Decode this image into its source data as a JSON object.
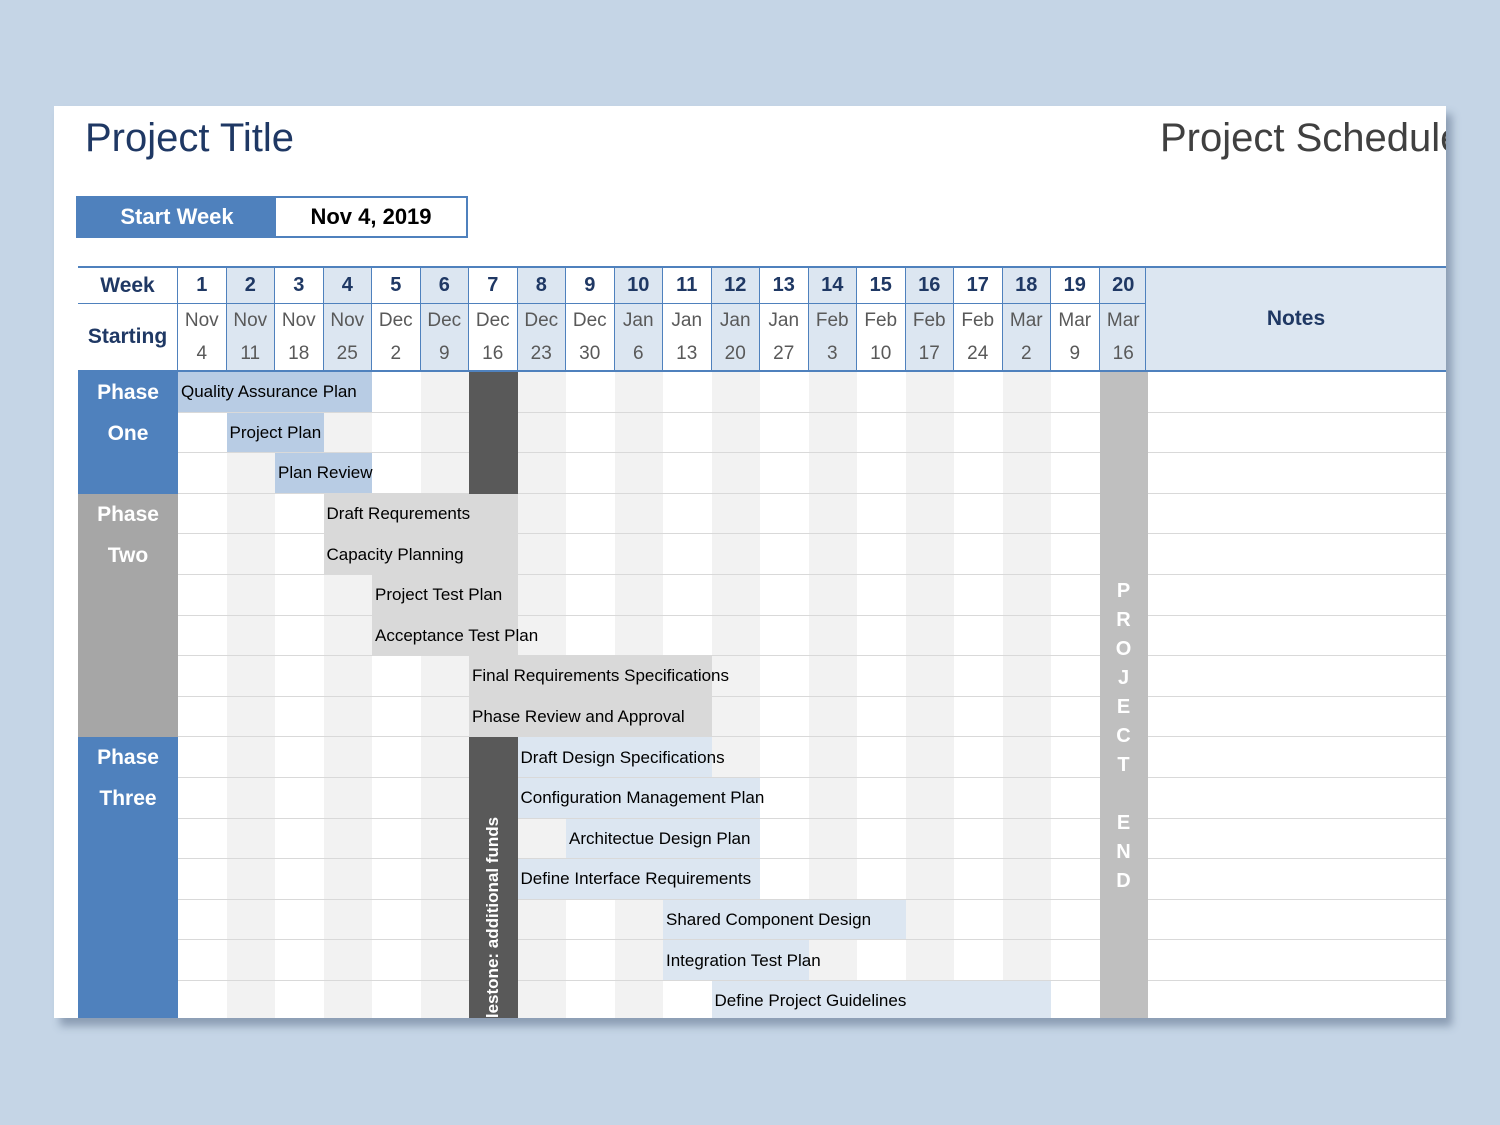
{
  "title": "Project Title",
  "schedule_title": "Project Schedule",
  "start_week": {
    "label": "Start Week",
    "value": "Nov 4, 2019"
  },
  "header": {
    "week_label": "Week",
    "starting_label": "Starting",
    "notes_label": "Notes",
    "weeks": [
      {
        "num": "1",
        "month": "Nov",
        "day": "4"
      },
      {
        "num": "2",
        "month": "Nov",
        "day": "11"
      },
      {
        "num": "3",
        "month": "Nov",
        "day": "18"
      },
      {
        "num": "4",
        "month": "Nov",
        "day": "25"
      },
      {
        "num": "5",
        "month": "Dec",
        "day": "2"
      },
      {
        "num": "6",
        "month": "Dec",
        "day": "9"
      },
      {
        "num": "7",
        "month": "Dec",
        "day": "16"
      },
      {
        "num": "8",
        "month": "Dec",
        "day": "23"
      },
      {
        "num": "9",
        "month": "Dec",
        "day": "30"
      },
      {
        "num": "10",
        "month": "Jan",
        "day": "6"
      },
      {
        "num": "11",
        "month": "Jan",
        "day": "13"
      },
      {
        "num": "12",
        "month": "Jan",
        "day": "20"
      },
      {
        "num": "13",
        "month": "Jan",
        "day": "27"
      },
      {
        "num": "14",
        "month": "Feb",
        "day": "3"
      },
      {
        "num": "15",
        "month": "Feb",
        "day": "10"
      },
      {
        "num": "16",
        "month": "Feb",
        "day": "17"
      },
      {
        "num": "17",
        "month": "Feb",
        "day": "24"
      },
      {
        "num": "18",
        "month": "Mar",
        "day": "2"
      },
      {
        "num": "19",
        "month": "Mar",
        "day": "9"
      },
      {
        "num": "20",
        "month": "Mar",
        "day": "16"
      }
    ]
  },
  "phases": [
    {
      "name_line1": "Phase",
      "name_line2": "One",
      "color": "#4f81bd",
      "bar_color": "#b8cce4",
      "tasks": [
        {
          "label": "Quality Assurance Plan",
          "start": 1,
          "end": 5
        },
        {
          "label": "Project Plan",
          "start": 2,
          "end": 4
        },
        {
          "label": "Plan Review",
          "start": 3,
          "end": 5
        }
      ]
    },
    {
      "name_line1": "Phase",
      "name_line2": "Two",
      "color": "#a6a6a6",
      "bar_color": "#d9d9d9",
      "tasks": [
        {
          "label": "Draft Requrements",
          "start": 4,
          "end": 8
        },
        {
          "label": "Capacity Planning",
          "start": 4,
          "end": 8
        },
        {
          "label": "Project Test Plan",
          "start": 5,
          "end": 8
        },
        {
          "label": "Acceptance Test Plan",
          "start": 5,
          "end": 8
        },
        {
          "label": "Final Requirements Specifications",
          "start": 7,
          "end": 12
        },
        {
          "label": "Phase Review and Approval",
          "start": 7,
          "end": 12
        }
      ]
    },
    {
      "name_line1": "Phase",
      "name_line2": "Three",
      "color": "#4f81bd",
      "bar_color": "#dce6f1",
      "tasks": [
        {
          "label": "Draft Design Specifications",
          "start": 8,
          "end": 12
        },
        {
          "label": "Configuration Management Plan",
          "start": 8,
          "end": 13
        },
        {
          "label": "Architectue Design Plan",
          "start": 9,
          "end": 13
        },
        {
          "label": "Define Interface Requirements",
          "start": 8,
          "end": 13
        },
        {
          "label": "Shared Component Design",
          "start": 11,
          "end": 16
        },
        {
          "label": "Integration Test Plan",
          "start": 11,
          "end": 14
        },
        {
          "label": "Define Project Guidelines",
          "start": 12,
          "end": 19
        }
      ]
    }
  ],
  "milestone": {
    "week": 7,
    "text": "Milestone: additional funds",
    "color": "#595959"
  },
  "project_end": {
    "week": 20,
    "letters": [
      "P",
      "R",
      "O",
      "J",
      "E",
      "C",
      "T",
      "",
      "E",
      "N",
      "D"
    ],
    "color": "#bfbfbf"
  },
  "colors": {
    "blue": "#4f81bd",
    "header_shade": "#dce6f1",
    "alt_column": "#f2f2f2",
    "grid_line": "#d9d9d9"
  }
}
